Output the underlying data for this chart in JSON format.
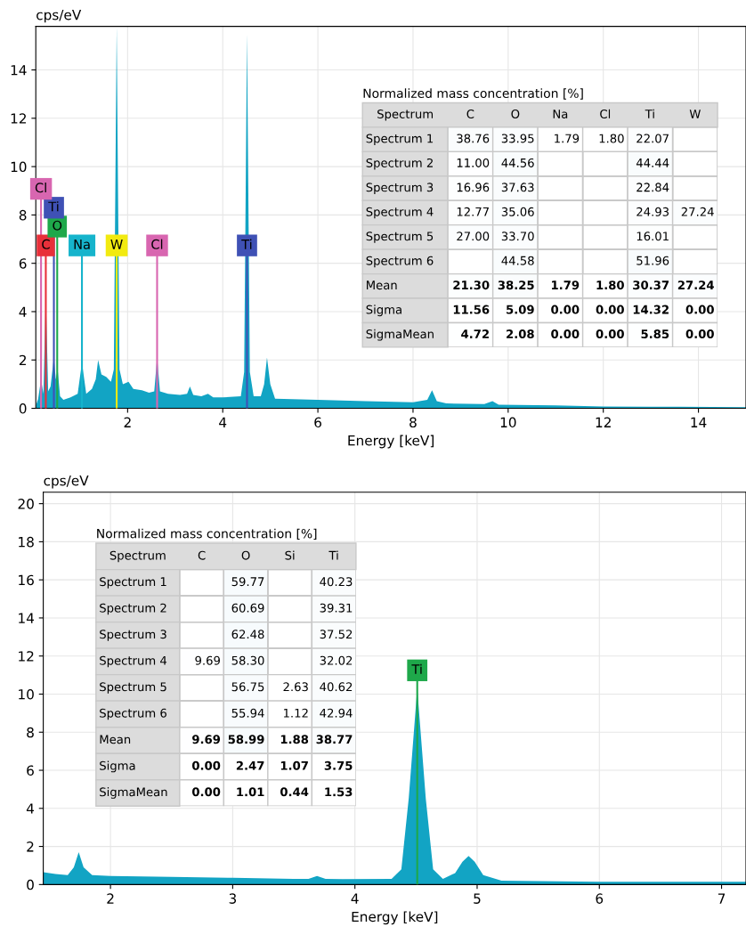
{
  "chart_data": [
    {
      "type": "area",
      "xlabel": "Energy [keV]",
      "ylabel": "cps/eV",
      "xlim": [
        0.07,
        15
      ],
      "ylim": [
        0,
        15.8
      ],
      "xticks": [
        2,
        4,
        6,
        8,
        10,
        12,
        14
      ],
      "yticks": [
        0,
        2,
        4,
        6,
        8,
        10,
        12,
        14
      ],
      "grid": true,
      "x": [
        0.07,
        0.12,
        0.18,
        0.23,
        0.28,
        0.33,
        0.38,
        0.45,
        0.49,
        0.53,
        0.58,
        0.65,
        0.8,
        0.95,
        1.04,
        1.13,
        1.25,
        1.33,
        1.38,
        1.45,
        1.55,
        1.65,
        1.71,
        1.77,
        1.83,
        1.9,
        2.02,
        2.12,
        2.3,
        2.45,
        2.56,
        2.62,
        2.68,
        2.85,
        3.1,
        3.25,
        3.31,
        3.38,
        3.55,
        3.69,
        3.8,
        4.0,
        4.38,
        4.45,
        4.51,
        4.57,
        4.65,
        4.8,
        4.87,
        4.93,
        5.0,
        5.1,
        6.0,
        7.0,
        8.0,
        8.3,
        8.4,
        8.5,
        8.7,
        9.5,
        9.67,
        9.8,
        11.0,
        12.0,
        13.0,
        15.0
      ],
      "series": [
        {
          "color": "#12a4c4",
          "values": [
            0.1,
            0.4,
            1.2,
            0.6,
            4.7,
            0.7,
            0.9,
            2.1,
            1.2,
            1.6,
            0.5,
            0.35,
            0.45,
            0.6,
            1.9,
            0.6,
            0.8,
            1.2,
            2.0,
            1.4,
            1.3,
            1.1,
            1.6,
            15.8,
            1.6,
            1.0,
            1.1,
            0.8,
            0.75,
            0.65,
            0.7,
            2.1,
            0.7,
            0.6,
            0.55,
            0.6,
            0.9,
            0.55,
            0.5,
            0.6,
            0.45,
            0.45,
            0.5,
            1.5,
            15.5,
            1.5,
            0.5,
            0.5,
            1.0,
            2.1,
            1.0,
            0.4,
            0.35,
            0.3,
            0.25,
            0.35,
            0.75,
            0.3,
            0.2,
            0.18,
            0.3,
            0.15,
            0.12,
            0.08,
            0.07,
            0.05
          ]
        }
      ],
      "ref_lines": [
        {
          "axis": "x",
          "value": 0.28,
          "label": "C",
          "color": "#e8303a"
        },
        {
          "axis": "x",
          "value": 0.52,
          "label": "O",
          "color": "#1ea84a"
        },
        {
          "axis": "x",
          "value": 0.45,
          "label": "Ti",
          "color": "#3f51b5"
        },
        {
          "axis": "x",
          "value": 0.18,
          "label": "Cl",
          "color": "#d866b0"
        },
        {
          "axis": "x",
          "value": 1.04,
          "label": "Na",
          "color": "#16b4cc"
        },
        {
          "axis": "x",
          "value": 1.77,
          "label": "W",
          "color": "#f2ea10"
        },
        {
          "axis": "x",
          "value": 2.62,
          "label": "Cl",
          "color": "#d866b0"
        },
        {
          "axis": "x",
          "value": 4.51,
          "label": "Ti",
          "color": "#3f51b5"
        }
      ]
    },
    {
      "type": "heatmap",
      "title": "Normalized mass concentration [%]",
      "ylabel": "Spectrum",
      "categories": [
        "C",
        "O",
        "Na",
        "Cl",
        "Ti",
        "W"
      ],
      "y_categories": [
        "Spectrum 1",
        "Spectrum 2",
        "Spectrum 3",
        "Spectrum 4",
        "Spectrum 5",
        "Spectrum 6",
        "Mean",
        "Sigma",
        "SigmaMean"
      ],
      "cells": [
        [
          38.76,
          33.95,
          1.79,
          1.8,
          22.07,
          null
        ],
        [
          11.0,
          44.56,
          null,
          null,
          44.44,
          null
        ],
        [
          16.96,
          37.63,
          null,
          null,
          22.84,
          null
        ],
        [
          12.77,
          35.06,
          null,
          null,
          24.93,
          27.24
        ],
        [
          27.0,
          33.7,
          null,
          null,
          16.01,
          null
        ],
        [
          null,
          44.58,
          null,
          null,
          51.96,
          null
        ],
        [
          21.3,
          38.25,
          1.79,
          1.8,
          30.37,
          27.24
        ],
        [
          11.56,
          5.09,
          0.0,
          0.0,
          14.32,
          0.0
        ],
        [
          4.72,
          2.08,
          0.0,
          0.0,
          5.85,
          0.0
        ]
      ],
      "cell_labels": [
        [
          "38.76",
          "33.95",
          "1.79",
          "1.80",
          "22.07",
          null
        ],
        [
          "11.00",
          "44.56",
          null,
          null,
          "44.44",
          null
        ],
        [
          "16.96",
          "37.63",
          null,
          null,
          "22.84",
          null
        ],
        [
          "12.77",
          "35.06",
          null,
          null,
          "24.93",
          "27.24"
        ],
        [
          "27.00",
          "33.70",
          null,
          null,
          "16.01",
          null
        ],
        [
          null,
          "44.58",
          null,
          null,
          "51.96",
          null
        ],
        [
          "21.30",
          "38.25",
          "1.79",
          "1.80",
          "30.37",
          "27.24"
        ],
        [
          "11.56",
          "5.09",
          "0.00",
          "0.00",
          "14.32",
          "0.00"
        ],
        [
          "4.72",
          "2.08",
          "0.00",
          "0.00",
          "5.85",
          "0.00"
        ]
      ]
    },
    {
      "type": "area",
      "xlabel": "Energy [keV]",
      "ylabel": "cps/eV",
      "xlim": [
        1.45,
        7.2
      ],
      "ylim": [
        0,
        20.6
      ],
      "xticks": [
        2,
        3,
        4,
        5,
        6,
        7
      ],
      "yticks": [
        0,
        2,
        4,
        6,
        8,
        10,
        12,
        14,
        16,
        18,
        20
      ],
      "grid": true,
      "x": [
        1.45,
        1.55,
        1.65,
        1.7,
        1.74,
        1.78,
        1.85,
        2.0,
        2.5,
        3.0,
        3.5,
        3.62,
        3.69,
        3.76,
        3.9,
        4.3,
        4.38,
        4.44,
        4.51,
        4.58,
        4.64,
        4.72,
        4.82,
        4.88,
        4.93,
        4.98,
        5.05,
        5.2,
        6.0,
        7.2
      ],
      "series": [
        {
          "color": "#12a4c4",
          "values": [
            0.65,
            0.55,
            0.5,
            0.9,
            1.7,
            0.9,
            0.5,
            0.45,
            0.4,
            0.35,
            0.3,
            0.3,
            0.45,
            0.3,
            0.28,
            0.3,
            0.8,
            4.5,
            10.3,
            4.5,
            0.8,
            0.3,
            0.6,
            1.2,
            1.5,
            1.2,
            0.5,
            0.2,
            0.15,
            0.15
          ]
        }
      ],
      "ref_lines": [
        {
          "axis": "x",
          "value": 4.51,
          "label": "Ti",
          "color": "#1ea84a"
        }
      ]
    },
    {
      "type": "heatmap",
      "title": "Normalized mass concentration [%]",
      "ylabel": "Spectrum",
      "categories": [
        "C",
        "O",
        "Si",
        "Ti"
      ],
      "y_categories": [
        "Spectrum 1",
        "Spectrum 2",
        "Spectrum 3",
        "Spectrum 4",
        "Spectrum 5",
        "Spectrum 6",
        "Mean",
        "Sigma",
        "SigmaMean"
      ],
      "cells": [
        [
          null,
          59.77,
          null,
          40.23
        ],
        [
          null,
          60.69,
          null,
          39.31
        ],
        [
          null,
          62.48,
          null,
          37.52
        ],
        [
          9.69,
          58.3,
          null,
          32.02
        ],
        [
          null,
          56.75,
          2.63,
          40.62
        ],
        [
          null,
          55.94,
          1.12,
          42.94
        ],
        [
          9.69,
          58.99,
          1.88,
          38.77
        ],
        [
          0.0,
          2.47,
          1.07,
          3.75
        ],
        [
          0.0,
          1.01,
          0.44,
          1.53
        ]
      ],
      "cell_labels": [
        [
          null,
          "59.77",
          null,
          "40.23"
        ],
        [
          null,
          "60.69",
          null,
          "39.31"
        ],
        [
          null,
          "62.48",
          null,
          "37.52"
        ],
        [
          "9.69",
          "58.30",
          null,
          "32.02"
        ],
        [
          null,
          "56.75",
          "2.63",
          "40.62"
        ],
        [
          null,
          "55.94",
          "1.12",
          "42.94"
        ],
        [
          "9.69",
          "58.99",
          "1.88",
          "38.77"
        ],
        [
          "0.00",
          "2.47",
          "1.07",
          "3.75"
        ],
        [
          "0.00",
          "1.01",
          "0.44",
          "1.53"
        ]
      ]
    }
  ]
}
